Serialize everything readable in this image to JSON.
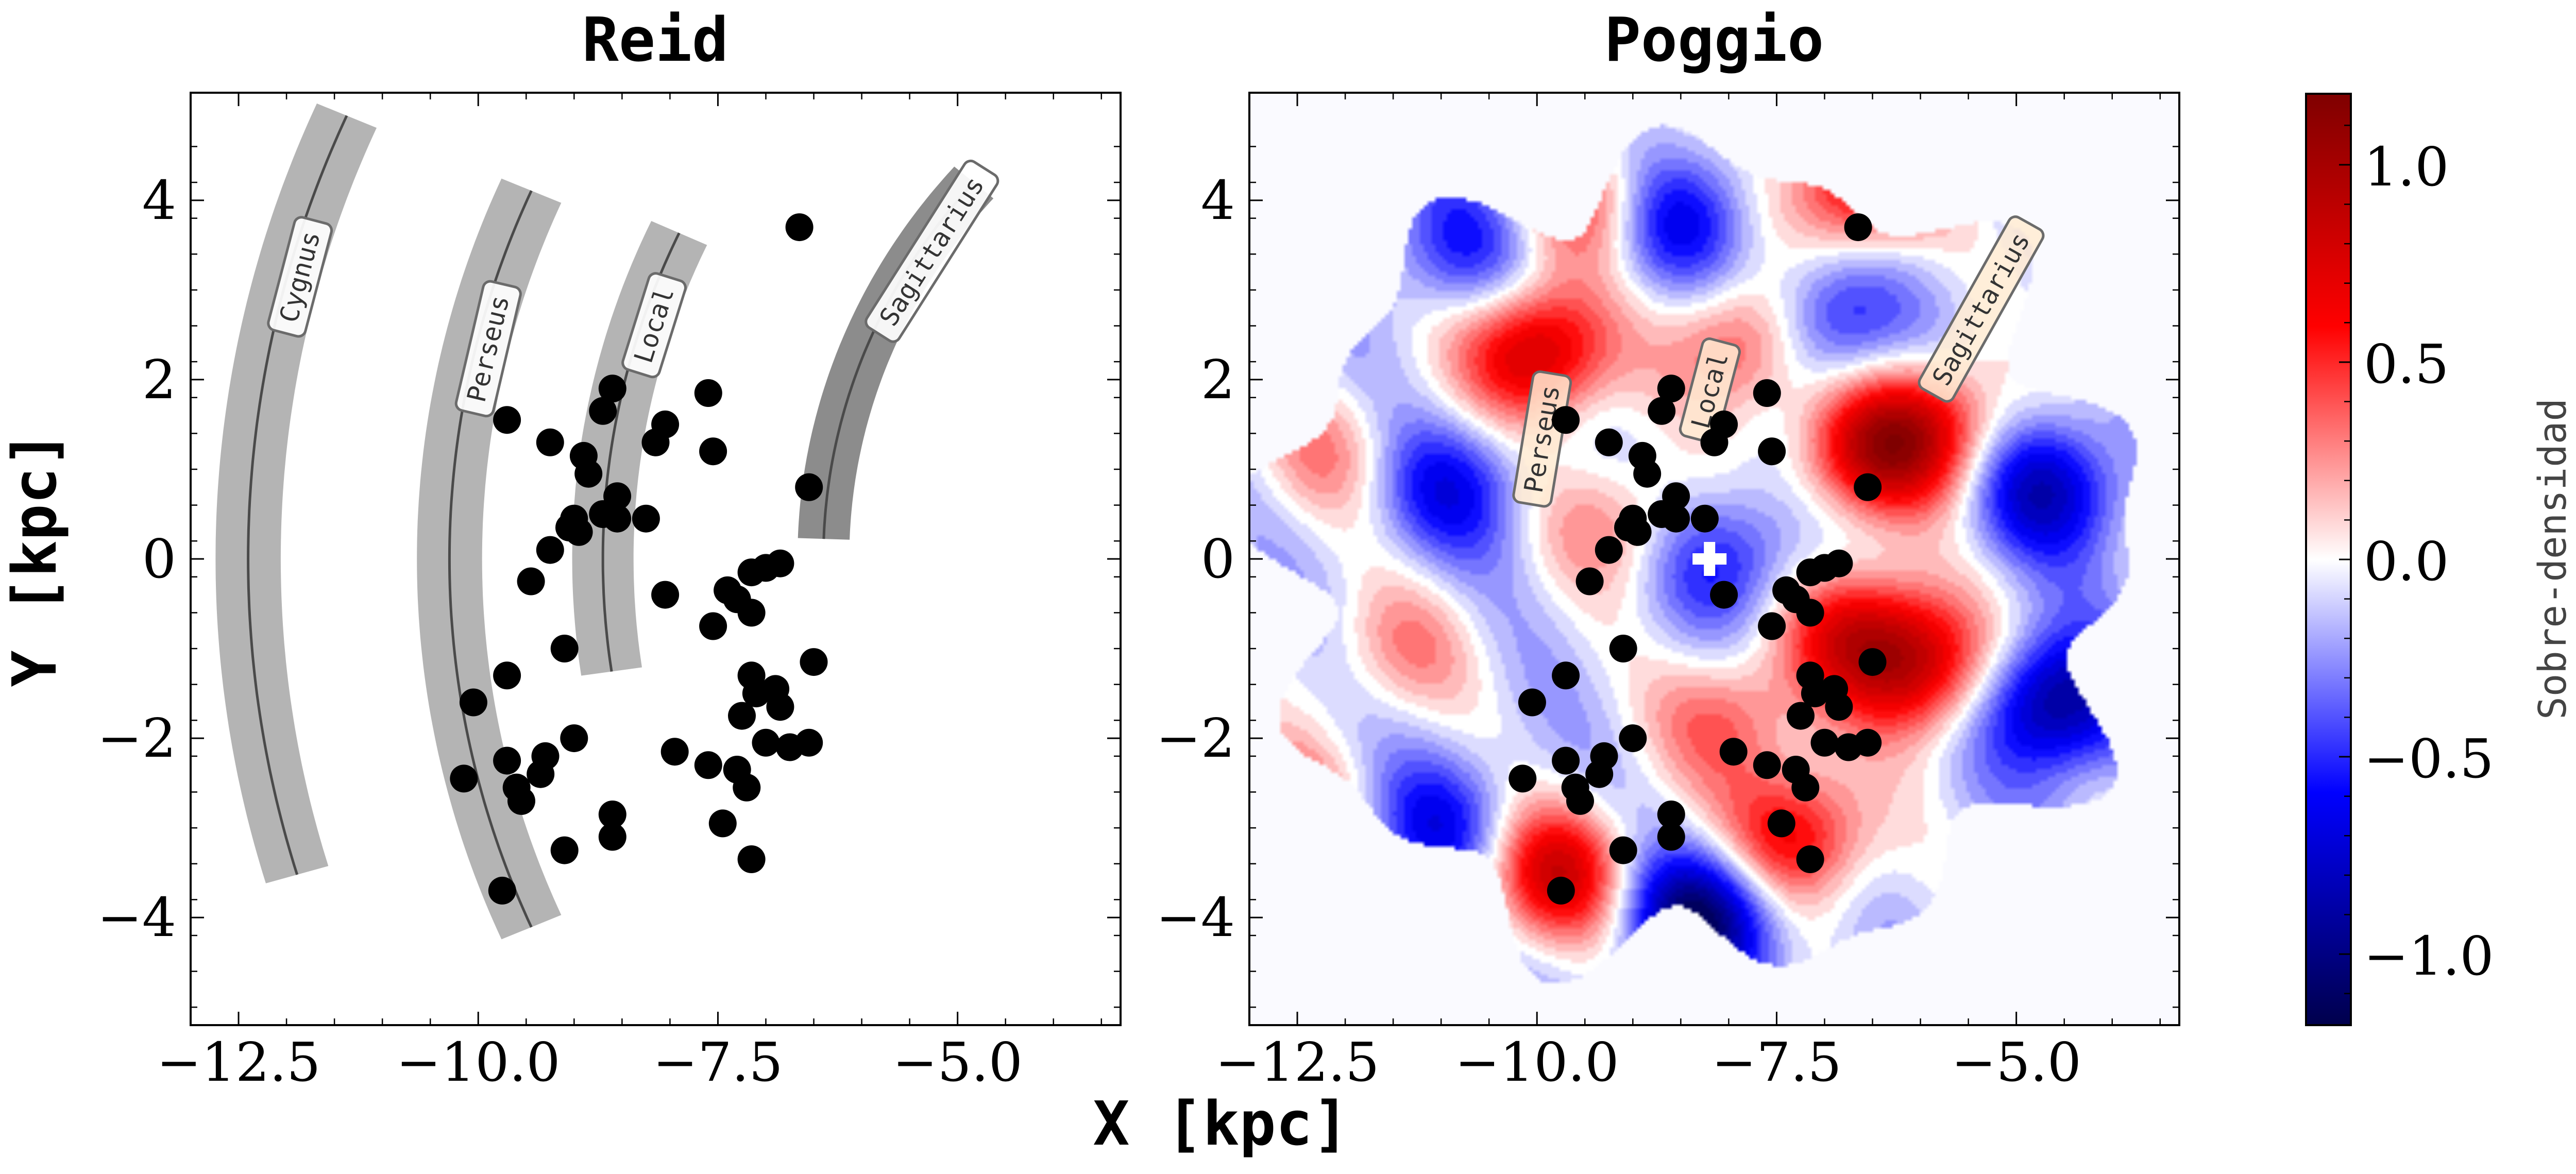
{
  "chart_data": [
    {
      "type": "scatter",
      "title": "Reid",
      "xlabel": "X [kpc]",
      "ylabel": "Y [kpc]",
      "xlim": [
        -13.0,
        -3.3
      ],
      "ylim": [
        -5.2,
        5.2
      ],
      "xticks": [
        -12.5,
        -10.0,
        -7.5,
        -5.0
      ],
      "xtick_labels": [
        "−12.5",
        "−10.0",
        "−7.5",
        "−5.0"
      ],
      "yticks": [
        -4,
        -2,
        0,
        2,
        4
      ],
      "ytick_labels": [
        "−4",
        "−2",
        "0",
        "2",
        "4"
      ],
      "grid": false,
      "arms": [
        {
          "label": "Cygnus",
          "radius": 12.4,
          "phi_start": -16.5,
          "phi_end": 23.5,
          "half_width": 0.34,
          "color": "#b4b4b4"
        },
        {
          "label": "Perseus",
          "radius": 10.3,
          "phi_start": -23.5,
          "phi_end": 23.5,
          "half_width": 0.34,
          "color": "#b4b4b4"
        },
        {
          "label": "Local",
          "radius": 8.7,
          "phi_start": -8.3,
          "phi_end": 24.7,
          "half_width": 0.32,
          "color": "#b4b4b4"
        },
        {
          "label": "Sagittarius",
          "radius": 6.4,
          "phi_start": 2.0,
          "phi_end": 41.0,
          "half_width": 0.27,
          "color": "#8c8c8c"
        }
      ]
    },
    {
      "type": "heatmap",
      "title": "Poggio",
      "xlabel": "X [kpc]",
      "ylabel": "Y [kpc]",
      "xlim": [
        -13.0,
        -3.3
      ],
      "ylim": [
        -5.2,
        5.2
      ],
      "xticks": [
        -12.5,
        -10.0,
        -7.5,
        -5.0
      ],
      "xtick_labels": [
        "−12.5",
        "−10.0",
        "−7.5",
        "−5.0"
      ],
      "yticks": [
        -4,
        -2,
        0,
        2,
        4
      ],
      "ytick_labels": [
        "−4",
        "−2",
        "0",
        "2",
        "4"
      ],
      "sun_marker": {
        "x": -8.2,
        "y": 0.0
      },
      "arm_labels": [
        "Perseus",
        "Local",
        "Sagittarius"
      ],
      "overdensity_features": [
        {
          "x": -10.0,
          "y": 2.3,
          "amp": 1.0
        },
        {
          "x": -7.8,
          "y": 2.4,
          "amp": 0.7
        },
        {
          "x": -6.6,
          "y": 4.2,
          "amp": 0.9
        },
        {
          "x": -6.5,
          "y": 1.2,
          "amp": 0.9
        },
        {
          "x": -5.8,
          "y": 1.5,
          "amp": 0.6
        },
        {
          "x": -6.0,
          "y": -1.2,
          "amp": 0.9
        },
        {
          "x": -6.7,
          "y": -0.8,
          "amp": 0.7
        },
        {
          "x": -7.3,
          "y": -3.1,
          "amp": 0.8
        },
        {
          "x": -9.8,
          "y": -3.5,
          "amp": 0.9
        },
        {
          "x": -12.7,
          "y": -2.8,
          "amp": 0.55
        },
        {
          "x": -12.2,
          "y": 1.2,
          "amp": 0.35
        },
        {
          "x": -9.4,
          "y": 4.0,
          "amp": 0.6
        },
        {
          "x": -9.2,
          "y": 0.4,
          "amp": 0.4
        },
        {
          "x": -8.0,
          "y": -1.8,
          "amp": 0.5
        },
        {
          "x": -11.4,
          "y": -1.0,
          "amp": 0.35
        }
      ],
      "underdensity_features": [
        {
          "x": -8.3,
          "y": -4.0,
          "amp": -1.0
        },
        {
          "x": -4.6,
          "y": -1.6,
          "amp": -0.9
        },
        {
          "x": -4.7,
          "y": 0.8,
          "amp": -0.7
        },
        {
          "x": -8.6,
          "y": 3.8,
          "amp": -0.6
        },
        {
          "x": -10.9,
          "y": 0.8,
          "amp": -0.5
        },
        {
          "x": -7.0,
          "y": 2.6,
          "amp": -0.6
        },
        {
          "x": -8.0,
          "y": 0.0,
          "amp": -0.45
        },
        {
          "x": -11.0,
          "y": -3.0,
          "amp": -0.5
        },
        {
          "x": -10.8,
          "y": 3.5,
          "amp": -0.4
        }
      ]
    }
  ],
  "clusters": [
    {
      "x": -9.7,
      "y": 1.55
    },
    {
      "x": -9.25,
      "y": 1.3
    },
    {
      "x": -8.9,
      "y": 1.15
    },
    {
      "x": -8.85,
      "y": 0.95
    },
    {
      "x": -8.6,
      "y": 1.9
    },
    {
      "x": -8.7,
      "y": 1.65
    },
    {
      "x": -8.05,
      "y": 1.5
    },
    {
      "x": -8.15,
      "y": 1.3
    },
    {
      "x": -7.6,
      "y": 1.85
    },
    {
      "x": -7.55,
      "y": 1.2
    },
    {
      "x": -6.65,
      "y": 3.7
    },
    {
      "x": -6.55,
      "y": 0.8
    },
    {
      "x": -8.55,
      "y": 0.7
    },
    {
      "x": -8.7,
      "y": 0.5
    },
    {
      "x": -8.55,
      "y": 0.45
    },
    {
      "x": -8.25,
      "y": 0.45
    },
    {
      "x": -9.0,
      "y": 0.45
    },
    {
      "x": -9.05,
      "y": 0.35
    },
    {
      "x": -8.95,
      "y": 0.3
    },
    {
      "x": -9.25,
      "y": 0.1
    },
    {
      "x": -9.45,
      "y": -0.25
    },
    {
      "x": -8.05,
      "y": -0.4
    },
    {
      "x": -7.15,
      "y": -0.15
    },
    {
      "x": -7.0,
      "y": -0.1
    },
    {
      "x": -6.85,
      "y": -0.05
    },
    {
      "x": -7.4,
      "y": -0.35
    },
    {
      "x": -7.3,
      "y": -0.45
    },
    {
      "x": -7.15,
      "y": -0.6
    },
    {
      "x": -7.55,
      "y": -0.75
    },
    {
      "x": -9.1,
      "y": -1.0
    },
    {
      "x": -9.7,
      "y": -1.3
    },
    {
      "x": -7.15,
      "y": -1.3
    },
    {
      "x": -7.1,
      "y": -1.5
    },
    {
      "x": -6.9,
      "y": -1.45
    },
    {
      "x": -6.5,
      "y": -1.15
    },
    {
      "x": -6.85,
      "y": -1.65
    },
    {
      "x": -7.25,
      "y": -1.75
    },
    {
      "x": -10.05,
      "y": -1.6
    },
    {
      "x": -7.0,
      "y": -2.05
    },
    {
      "x": -6.75,
      "y": -2.1
    },
    {
      "x": -6.55,
      "y": -2.05
    },
    {
      "x": -9.0,
      "y": -2.0
    },
    {
      "x": -9.7,
      "y": -2.25
    },
    {
      "x": -9.3,
      "y": -2.2
    },
    {
      "x": -9.35,
      "y": -2.4
    },
    {
      "x": -7.95,
      "y": -2.15
    },
    {
      "x": -7.6,
      "y": -2.3
    },
    {
      "x": -7.3,
      "y": -2.35
    },
    {
      "x": -7.2,
      "y": -2.55
    },
    {
      "x": -10.15,
      "y": -2.45
    },
    {
      "x": -9.6,
      "y": -2.55
    },
    {
      "x": -9.55,
      "y": -2.7
    },
    {
      "x": -8.6,
      "y": -2.85
    },
    {
      "x": -8.6,
      "y": -3.1
    },
    {
      "x": -7.45,
      "y": -2.95
    },
    {
      "x": -9.1,
      "y": -3.25
    },
    {
      "x": -7.15,
      "y": -3.35
    },
    {
      "x": -9.75,
      "y": -3.7
    }
  ],
  "colorbar": {
    "label": "Sobre-densidad",
    "vmin": -1.18,
    "vmax": 1.18,
    "ticks": [
      1.0,
      0.5,
      0.0,
      -0.5,
      -1.0
    ],
    "tick_labels": [
      "1.0",
      "0.5",
      "0.0",
      "−0.5",
      "−1.0"
    ],
    "colormap": "seismic"
  },
  "figure_xlabel": "X [kpc]"
}
